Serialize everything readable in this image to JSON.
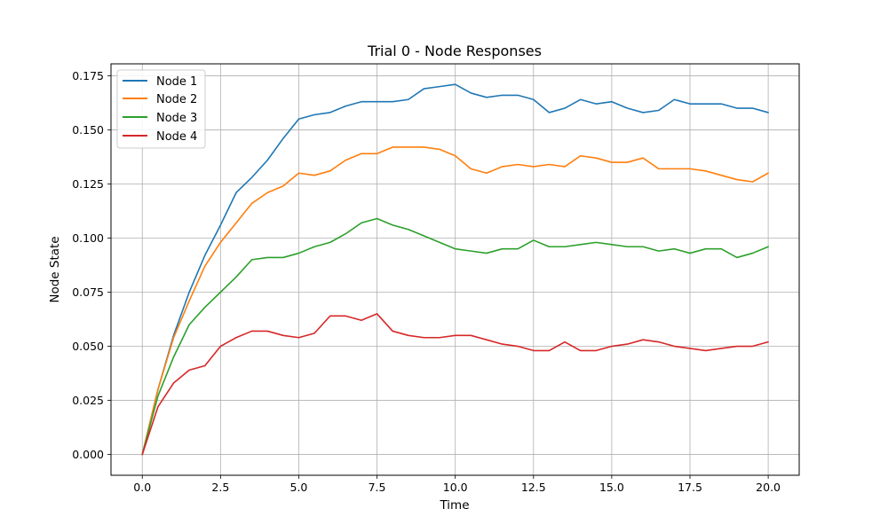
{
  "chart_data": {
    "type": "line",
    "title": "Trial 0 - Node Responses",
    "xlabel": "Time",
    "ylabel": "Node State",
    "xlim": [
      -1.0,
      20.99
    ],
    "ylim": [
      -0.0096,
      0.1805
    ],
    "xticks": [
      0.0,
      2.5,
      5.0,
      7.5,
      10.0,
      12.5,
      15.0,
      17.5,
      20.0
    ],
    "xtick_labels": [
      "0.0",
      "2.5",
      "5.0",
      "7.5",
      "10.0",
      "12.5",
      "15.0",
      "17.5",
      "20.0"
    ],
    "yticks": [
      0.0,
      0.025,
      0.05,
      0.075,
      0.1,
      0.125,
      0.15,
      0.175
    ],
    "ytick_labels": [
      "0.000",
      "0.025",
      "0.050",
      "0.075",
      "0.100",
      "0.125",
      "0.150",
      "0.175"
    ],
    "grid": true,
    "legend_position": "top-left",
    "x": [
      0,
      0.5,
      1,
      1.5,
      2,
      2.5,
      3,
      3.5,
      4,
      4.5,
      5,
      5.5,
      6,
      6.5,
      7,
      7.5,
      8,
      8.5,
      9,
      9.5,
      10,
      10.5,
      11,
      11.5,
      12,
      12.5,
      13,
      13.5,
      14,
      14.5,
      15,
      15.5,
      16,
      16.5,
      17,
      17.5,
      18,
      18.5,
      19,
      19.5,
      20
    ],
    "series": [
      {
        "name": "Node 1",
        "color": "#1f77b4",
        "values": [
          0.0,
          0.03,
          0.055,
          0.075,
          0.092,
          0.106,
          0.121,
          0.128,
          0.136,
          0.146,
          0.155,
          0.157,
          0.158,
          0.161,
          0.163,
          0.163,
          0.163,
          0.164,
          0.169,
          0.17,
          0.171,
          0.167,
          0.165,
          0.166,
          0.166,
          0.164,
          0.158,
          0.16,
          0.164,
          0.162,
          0.163,
          0.16,
          0.158,
          0.159,
          0.164,
          0.162,
          0.162,
          0.162,
          0.16,
          0.16,
          0.158
        ]
      },
      {
        "name": "Node 2",
        "color": "#ff7f0e",
        "values": [
          0.0,
          0.03,
          0.054,
          0.071,
          0.087,
          0.098,
          0.107,
          0.116,
          0.121,
          0.124,
          0.13,
          0.129,
          0.131,
          0.136,
          0.139,
          0.139,
          0.142,
          0.142,
          0.142,
          0.141,
          0.138,
          0.132,
          0.13,
          0.133,
          0.134,
          0.133,
          0.134,
          0.133,
          0.138,
          0.137,
          0.135,
          0.135,
          0.137,
          0.132,
          0.132,
          0.132,
          0.131,
          0.129,
          0.127,
          0.126,
          0.13
        ]
      },
      {
        "name": "Node 3",
        "color": "#2ca02c",
        "values": [
          0.0,
          0.027,
          0.045,
          0.06,
          0.068,
          0.075,
          0.082,
          0.09,
          0.091,
          0.091,
          0.093,
          0.096,
          0.098,
          0.102,
          0.107,
          0.109,
          0.106,
          0.104,
          0.101,
          0.098,
          0.095,
          0.094,
          0.093,
          0.095,
          0.095,
          0.099,
          0.096,
          0.096,
          0.097,
          0.098,
          0.097,
          0.096,
          0.096,
          0.094,
          0.095,
          0.093,
          0.095,
          0.095,
          0.091,
          0.093,
          0.096
        ]
      },
      {
        "name": "Node 4",
        "color": "#d62728",
        "values": [
          0.0,
          0.022,
          0.033,
          0.039,
          0.041,
          0.05,
          0.054,
          0.057,
          0.057,
          0.055,
          0.054,
          0.056,
          0.064,
          0.064,
          0.062,
          0.065,
          0.057,
          0.055,
          0.054,
          0.054,
          0.055,
          0.055,
          0.053,
          0.051,
          0.05,
          0.048,
          0.048,
          0.052,
          0.048,
          0.048,
          0.05,
          0.051,
          0.053,
          0.052,
          0.05,
          0.049,
          0.048,
          0.049,
          0.05,
          0.05,
          0.052
        ]
      }
    ]
  }
}
